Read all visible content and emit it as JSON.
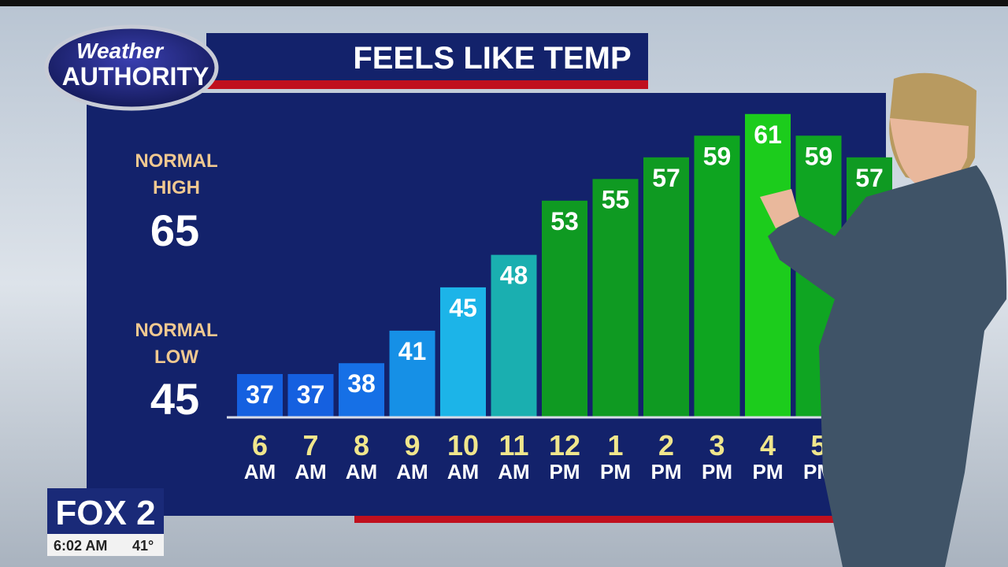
{
  "logo": {
    "line1": "Weather",
    "line2": "AUTHORITY"
  },
  "normals": {
    "high_label1": "NORMAL",
    "high_label2": "HIGH",
    "high": 65,
    "low_label1": "NORMAL",
    "low_label2": "LOW",
    "low": 45
  },
  "station": {
    "name": "FOX 2",
    "time": "6:02 AM",
    "temp": "41°"
  },
  "chart_data": {
    "type": "bar",
    "title": "FEELS LIKE TEMP",
    "categories": [
      "6",
      "7",
      "8",
      "9",
      "10",
      "11",
      "12",
      "1",
      "2",
      "3",
      "4",
      "5",
      null
    ],
    "category_periods": [
      "AM",
      "AM",
      "AM",
      "AM",
      "AM",
      "AM",
      "PM",
      "PM",
      "PM",
      "PM",
      "PM",
      "PM",
      null
    ],
    "values": [
      37,
      37,
      38,
      41,
      45,
      48,
      53,
      55,
      57,
      59,
      61,
      59,
      57
    ],
    "colors": [
      "#1560e0",
      "#1560e0",
      "#1670e6",
      "#1690e6",
      "#1cb4e8",
      "#1aafb0",
      "#0f9a22",
      "#0f9a22",
      "#0f9a22",
      "#0ea520",
      "#1ccc1c",
      "#0fa522",
      "#0f9a22"
    ],
    "ylim": [
      33,
      62
    ]
  }
}
